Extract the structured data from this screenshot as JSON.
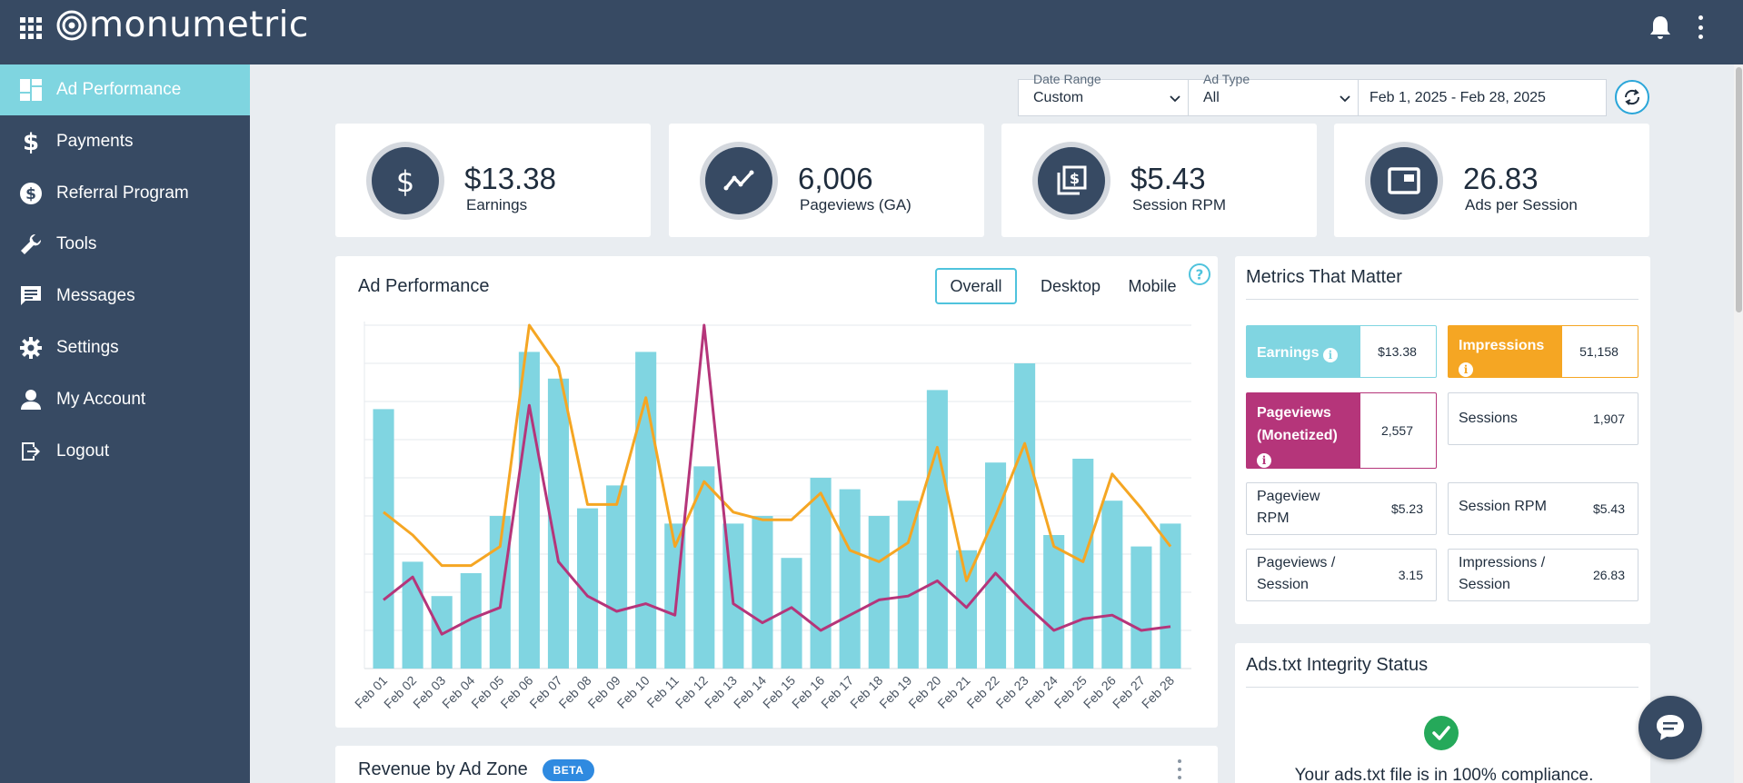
{
  "app": {
    "logo_text": "monumetric"
  },
  "sidebar": {
    "items": [
      {
        "label": "Ad Performance",
        "icon": "dashboard-icon",
        "active": true
      },
      {
        "label": "Payments",
        "icon": "dollar-icon"
      },
      {
        "label": "Referral Program",
        "icon": "dollar-circle-icon"
      },
      {
        "label": "Tools",
        "icon": "wrench-icon"
      },
      {
        "label": "Messages",
        "icon": "message-icon"
      },
      {
        "label": "Settings",
        "icon": "gear-icon"
      },
      {
        "label": "My Account",
        "icon": "person-icon"
      },
      {
        "label": "Logout",
        "icon": "logout-icon"
      }
    ]
  },
  "filters": {
    "date_range": {
      "label": "Date Range",
      "value": "Custom"
    },
    "ad_type": {
      "label": "Ad Type",
      "value": "All"
    },
    "dates": {
      "value": "Feb 1, 2025 - Feb 28, 2025"
    }
  },
  "stats": [
    {
      "value": "$13.38",
      "label": "Earnings",
      "icon": "dollar-icon"
    },
    {
      "value": "6,006",
      "label": "Pageviews (GA)",
      "icon": "trend-icon"
    },
    {
      "value": "$5.43",
      "label": "Session RPM",
      "icon": "copy-dollar-icon"
    },
    {
      "value": "26.83",
      "label": "Ads per Session",
      "icon": "ad-window-icon"
    }
  ],
  "ad_performance": {
    "title": "Ad Performance",
    "tabs": [
      "Overall",
      "Desktop",
      "Mobile"
    ],
    "active_tab": "Overall"
  },
  "chart_data": {
    "type": "bar",
    "categories": [
      "Feb 01",
      "Feb 02",
      "Feb 03",
      "Feb 04",
      "Feb 05",
      "Feb 06",
      "Feb 07",
      "Feb 08",
      "Feb 09",
      "Feb 10",
      "Feb 11",
      "Feb 12",
      "Feb 13",
      "Feb 14",
      "Feb 15",
      "Feb 16",
      "Feb 17",
      "Feb 18",
      "Feb 19",
      "Feb 20",
      "Feb 21",
      "Feb 22",
      "Feb 23",
      "Feb 24",
      "Feb 25",
      "Feb 26",
      "Feb 27",
      "Feb 28"
    ],
    "series": [
      {
        "type": "bar",
        "color": "#80d5e1",
        "values": [
          68,
          28,
          19,
          25,
          40,
          83,
          76,
          42,
          48,
          83,
          38,
          53,
          38,
          40,
          29,
          50,
          47,
          40,
          44,
          73,
          31,
          54,
          80,
          35,
          55,
          44,
          32,
          38
        ]
      },
      {
        "type": "line",
        "color": "#f5a623",
        "values": [
          41,
          35,
          27,
          27,
          32,
          90,
          79,
          43,
          43,
          71,
          32,
          49,
          41,
          39,
          39,
          46,
          31,
          28,
          33,
          58,
          23,
          40,
          59,
          32,
          28,
          51,
          42,
          32
        ]
      },
      {
        "type": "line",
        "color": "#b5357a",
        "values": [
          18,
          24,
          9,
          13,
          16,
          69,
          28,
          19,
          15,
          17,
          14,
          90,
          17,
          12,
          16,
          10,
          14,
          18,
          19,
          23,
          16,
          25,
          17,
          10,
          13,
          14,
          10,
          11
        ]
      }
    ],
    "ylim": [
      0,
      90
    ],
    "grid": true,
    "legend": "none"
  },
  "metrics": {
    "title": "Metrics That Matter",
    "items": [
      {
        "label": "Earnings",
        "value": "$13.38",
        "color": "#80d5e1",
        "info": true
      },
      {
        "label": "Impressions",
        "value": "51,158",
        "color": "#f5a623",
        "info": true
      },
      {
        "label": "Pageviews (Monetized)",
        "value": "2,557",
        "color": "#b5357a",
        "info": true
      },
      {
        "label": "Sessions",
        "value": "1,907"
      },
      {
        "label": "Pageview RPM",
        "value": "$5.23"
      },
      {
        "label": "Session RPM",
        "value": "$5.43"
      },
      {
        "label": "Pageviews / Session",
        "value": "3.15"
      },
      {
        "label": "Impressions / Session",
        "value": "26.83"
      }
    ]
  },
  "ads_txt": {
    "title": "Ads.txt Integrity Status",
    "status_text": "Your ads.txt file is in 100% compliance."
  },
  "revenue": {
    "title": "Revenue by Ad Zone",
    "badge": "BETA"
  }
}
